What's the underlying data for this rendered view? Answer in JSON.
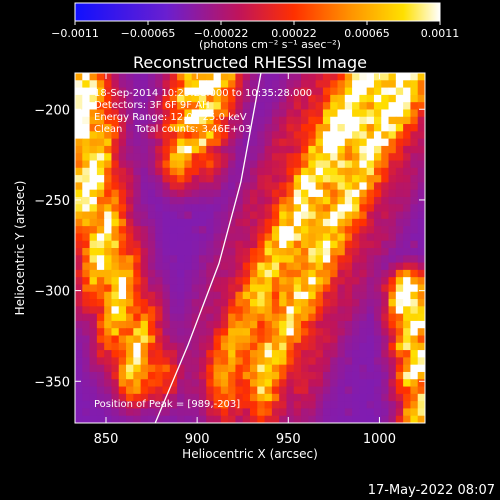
{
  "chart_data": {
    "type": "heatmap",
    "title": "Reconstructed RHESSI Image",
    "xlabel": "Heliocentric X (arcsec)",
    "ylabel": "Heliocentric Y (arcsec)",
    "xlim": [
      833,
      1025
    ],
    "ylim": [
      -373,
      -180
    ],
    "x_ticks": [
      850,
      900,
      950,
      1000
    ],
    "y_ticks": [
      -200,
      -250,
      -300,
      -350
    ],
    "x_tick_labels": [
      "850",
      "900",
      "950",
      "1000"
    ],
    "y_tick_labels": [
      "−200",
      "−250",
      "−300",
      "−350"
    ],
    "colorbar": {
      "range": [
        -0.0011,
        0.0011
      ],
      "tick_labels": [
        "−0.0011",
        "−0.00065",
        "−0.00022",
        "0.00022",
        "0.00065",
        "0.0011"
      ],
      "units": "(photons cm⁻² s⁻¹ asec⁻²)",
      "colors": [
        "#1010ff",
        "#6a1fd0",
        "#c0145a",
        "#ff3000",
        "#ff9000",
        "#ffe000",
        "#ffffff"
      ]
    },
    "annotations": [
      "18-Sep-2014 10:29:28.000 to 10:35:28.000",
      "Detectors: 3F 6F 9F AH",
      "Energy Range: 12.0 - 25.0 keV",
      "Clean    Total counts: 3.46E+03"
    ],
    "peak_label": "Position of Peak = [989,-203]",
    "peak": [
      989,
      -203
    ],
    "limb_curve": [
      [
        877,
        -373
      ],
      [
        895,
        -330
      ],
      [
        912,
        -285
      ],
      [
        924,
        -240
      ],
      [
        935,
        -180
      ]
    ],
    "emission_ridges": [
      {
        "name": "left",
        "points": [
          [
            835,
            -190
          ],
          [
            842,
            -250
          ],
          [
            855,
            -300
          ],
          [
            870,
            -345
          ]
        ],
        "width": 12
      },
      {
        "name": "upper",
        "points": [
          [
            905,
            -182
          ],
          [
            900,
            -205
          ],
          [
            895,
            -225
          ]
        ],
        "width": 12
      },
      {
        "name": "right",
        "points": [
          [
            1003,
            -182
          ],
          [
            985,
            -215
          ],
          [
            965,
            -260
          ],
          [
            945,
            -305
          ],
          [
            930,
            -345
          ]
        ],
        "width": 20
      },
      {
        "name": "far-right",
        "points": [
          [
            1015,
            -300
          ],
          [
            1020,
            -340
          ],
          [
            1022,
            -372
          ]
        ],
        "width": 8
      }
    ]
  },
  "footer": {
    "timestamp": "17-May-2022 08:07"
  }
}
